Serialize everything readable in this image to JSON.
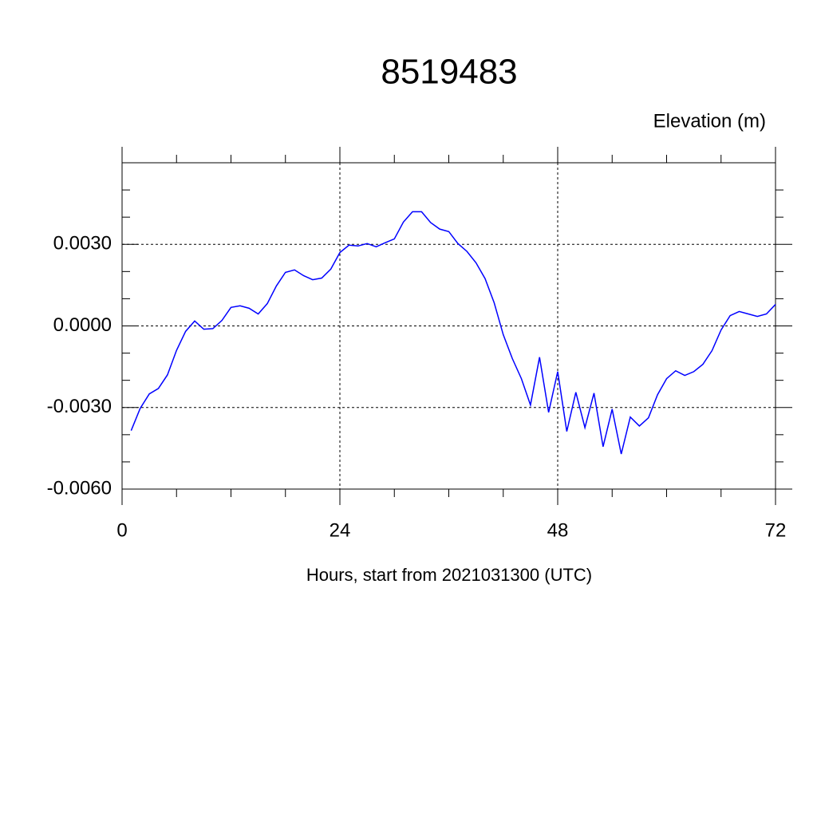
{
  "chart_data": {
    "type": "line",
    "title": "8519483",
    "ylabel": "Elevation (m)",
    "xlabel": "Hours, start from 2021031300 (UTC)",
    "color": "#0000ff",
    "grid": true,
    "xlim": [
      0,
      72
    ],
    "xticks": [
      0,
      24,
      48,
      72
    ],
    "xminorticks": [
      6,
      12,
      18,
      30,
      36,
      42,
      54,
      60,
      66
    ],
    "ylim": [
      -0.006,
      0.006
    ],
    "yticks": [
      {
        "value": -0.006,
        "label": "-0.0060"
      },
      {
        "value": -0.003,
        "label": "-0.0030"
      },
      {
        "value": 0,
        "label": "0.0000"
      },
      {
        "value": 0.003,
        "label": "0.0030"
      }
    ],
    "yminorticks": [
      -0.005,
      -0.004,
      -0.002,
      -0.001,
      0.001,
      0.002,
      0.004,
      0.005
    ],
    "x": [
      1,
      2,
      3,
      4,
      5,
      6,
      7,
      8,
      9,
      10,
      11,
      12,
      13,
      14,
      15,
      16,
      17,
      18,
      19,
      20,
      21,
      22,
      23,
      24,
      25,
      26,
      27,
      28,
      29,
      30,
      31,
      32,
      33,
      34,
      35,
      36,
      37,
      38,
      39,
      40,
      41,
      42,
      43,
      44,
      45,
      46,
      47,
      48,
      49,
      50,
      51,
      52,
      53,
      54,
      55,
      56,
      57,
      58,
      59,
      60,
      61,
      62,
      63,
      64,
      65,
      66,
      67,
      68,
      69,
      70,
      71,
      72
    ],
    "values": [
      -0.00385,
      -0.00303,
      -0.0025,
      -0.0023,
      -0.0018,
      -0.0009,
      -0.0002,
      0.00018,
      -0.00012,
      -0.0001,
      0.0002,
      0.00068,
      0.00074,
      0.00065,
      0.00044,
      0.00082,
      0.00147,
      0.00197,
      0.00206,
      0.00185,
      0.0017,
      0.00176,
      0.00209,
      0.0027,
      0.00297,
      0.00294,
      0.00303,
      0.00291,
      0.00306,
      0.0032,
      0.00382,
      0.0042,
      0.0042,
      0.0038,
      0.00356,
      0.00347,
      0.00303,
      0.00274,
      0.00232,
      0.00174,
      0.00085,
      -0.00032,
      -0.0012,
      -0.00194,
      -0.00291,
      -0.00115,
      -0.00318,
      -0.00168,
      -0.00388,
      -0.00244,
      -0.00374,
      -0.00247,
      -0.00444,
      -0.00306,
      -0.00471,
      -0.00335,
      -0.00368,
      -0.00338,
      -0.00253,
      -0.00194,
      -0.00165,
      -0.00182,
      -0.00168,
      -0.00141,
      -0.00091,
      -0.00015,
      0.00038,
      0.00053,
      0.00044,
      0.00035,
      0.00044,
      0.00079
    ]
  }
}
